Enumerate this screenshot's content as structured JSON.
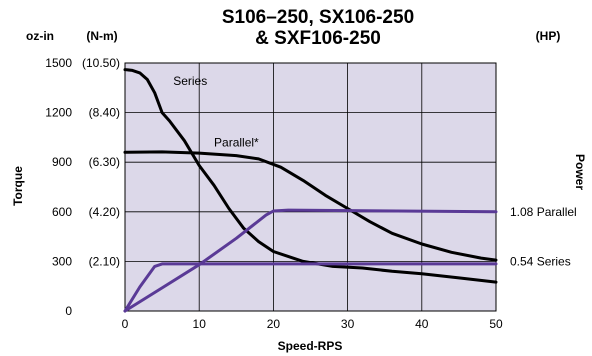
{
  "chart_data": {
    "type": "line",
    "title": [
      "S106–250, SX106-250",
      "& SXF106-250"
    ],
    "xlabel": "Speed-RPS",
    "ylabel_left": "Torque",
    "ylabel_right": "Power",
    "left_units_primary": "oz-in",
    "left_units_secondary": "(N-m)",
    "right_units": "(HP)",
    "xlim": [
      0,
      50
    ],
    "ylim": [
      0,
      1500
    ],
    "x_ticks": [
      0,
      10,
      20,
      30,
      40,
      50
    ],
    "y_ticks": [
      0,
      300,
      600,
      900,
      1200,
      1500
    ],
    "y_ticks_nm": [
      "",
      "(2.10)",
      "(4.20)",
      "(6.30)",
      "(8.40)",
      "(10.50)"
    ],
    "grid": true,
    "colors": {
      "plot_bg": "#dcd8e9",
      "torque": "#000000",
      "power": "#5a3a96"
    },
    "annotations": [
      {
        "text": "Series",
        "x": 6.5,
        "y": 1390
      },
      {
        "text": "Parallel*",
        "x": 12,
        "y": 1020
      }
    ],
    "right_labels": [
      {
        "text": "1.08 Parallel",
        "y": 600
      },
      {
        "text": "0.54 Series",
        "y": 300
      }
    ],
    "series": [
      {
        "kind": "torque",
        "points": [
          [
            0,
            1460
          ],
          [
            1,
            1455
          ],
          [
            2,
            1440
          ],
          [
            3,
            1400
          ],
          [
            4,
            1320
          ],
          [
            5,
            1200
          ],
          [
            6,
            1150
          ],
          [
            8,
            1030
          ],
          [
            10,
            880
          ],
          [
            12,
            760
          ],
          [
            14,
            620
          ],
          [
            16,
            500
          ],
          [
            18,
            420
          ],
          [
            20,
            360
          ],
          [
            24,
            300
          ],
          [
            28,
            270
          ],
          [
            32,
            260
          ],
          [
            36,
            240
          ],
          [
            40,
            225
          ],
          [
            45,
            200
          ],
          [
            50,
            175
          ]
        ]
      },
      {
        "kind": "torque",
        "points": [
          [
            0,
            960
          ],
          [
            5,
            962
          ],
          [
            10,
            955
          ],
          [
            15,
            940
          ],
          [
            18,
            920
          ],
          [
            21,
            870
          ],
          [
            24,
            790
          ],
          [
            27,
            700
          ],
          [
            30,
            620
          ],
          [
            33,
            540
          ],
          [
            36,
            470
          ],
          [
            40,
            405
          ],
          [
            44,
            355
          ],
          [
            48,
            320
          ],
          [
            50,
            308
          ]
        ]
      },
      {
        "kind": "power",
        "points": [
          [
            0,
            0
          ],
          [
            2,
            145
          ],
          [
            4,
            270
          ],
          [
            5,
            285
          ],
          [
            50,
            285
          ]
        ]
      },
      {
        "kind": "power",
        "points": [
          [
            0,
            0
          ],
          [
            5,
            140
          ],
          [
            10,
            280
          ],
          [
            15,
            440
          ],
          [
            19,
            580
          ],
          [
            20,
            605
          ],
          [
            22,
            610
          ],
          [
            50,
            600
          ]
        ]
      }
    ]
  }
}
